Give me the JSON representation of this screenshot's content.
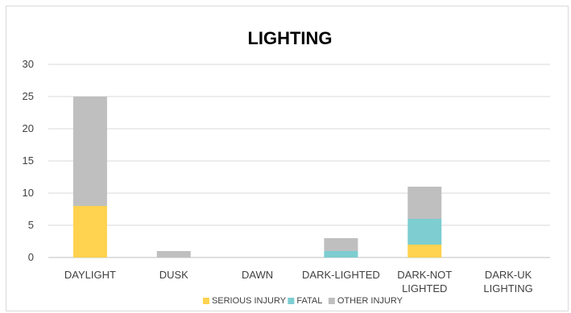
{
  "chart_data": {
    "type": "bar",
    "stacked": true,
    "title": "LIGHTING",
    "xlabel": "",
    "ylabel": "",
    "ylim": [
      0,
      30
    ],
    "yticks": [
      0,
      5,
      10,
      15,
      20,
      25,
      30
    ],
    "grid": true,
    "legend_position": "bottom",
    "categories": [
      "DAYLIGHT",
      "DUSK",
      "DAWN",
      "DARK-LIGHTED",
      "DARK-NOT LIGHTED",
      "DARK-UK LIGHTING"
    ],
    "category_lines": [
      [
        "DAYLIGHT"
      ],
      [
        "DUSK"
      ],
      [
        "DAWN"
      ],
      [
        "DARK-LIGHTED"
      ],
      [
        "DARK-NOT",
        "LIGHTED"
      ],
      [
        "DARK-UK",
        "LIGHTING"
      ]
    ],
    "series": [
      {
        "name": "SERIOUS INJURY",
        "color": "#ffd24f",
        "values": [
          8,
          0,
          0,
          0,
          2,
          0
        ]
      },
      {
        "name": "FATAL",
        "color": "#7dcdd1",
        "values": [
          0,
          0,
          0,
          1,
          4,
          0
        ]
      },
      {
        "name": "OTHER INJURY",
        "color": "#bfbfbf",
        "values": [
          17,
          1,
          0,
          2,
          5,
          0
        ]
      }
    ]
  }
}
